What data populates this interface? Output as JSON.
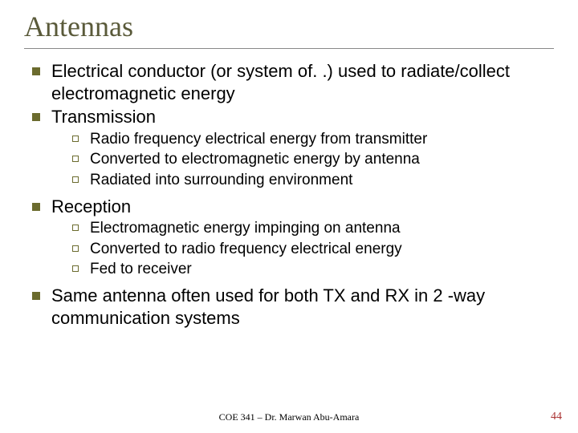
{
  "title": "Antennas",
  "bullets": [
    {
      "text": "Electrical conductor (or system of. .) used to radiate/collect electromagnetic energy"
    },
    {
      "text": "Transmission",
      "sub": [
        "Radio frequency electrical energy from transmitter",
        "Converted to electromagnetic energy by antenna",
        "Radiated into surrounding environment"
      ]
    },
    {
      "text": "Reception",
      "sub": [
        "Electromagnetic energy impinging on antenna",
        "Converted to radio frequency electrical energy",
        "Fed to receiver"
      ]
    },
    {
      "text": "Same antenna often used for both TX and RX in 2 -way communication systems"
    }
  ],
  "footer_center": "COE 341 – Dr. Marwan Abu-Amara",
  "page_number": "44",
  "colors": {
    "title_color": "#5a5a3a",
    "bullet_fill": "#6b6b2e",
    "page_num_color": "#aa3333",
    "underline": "#888"
  }
}
